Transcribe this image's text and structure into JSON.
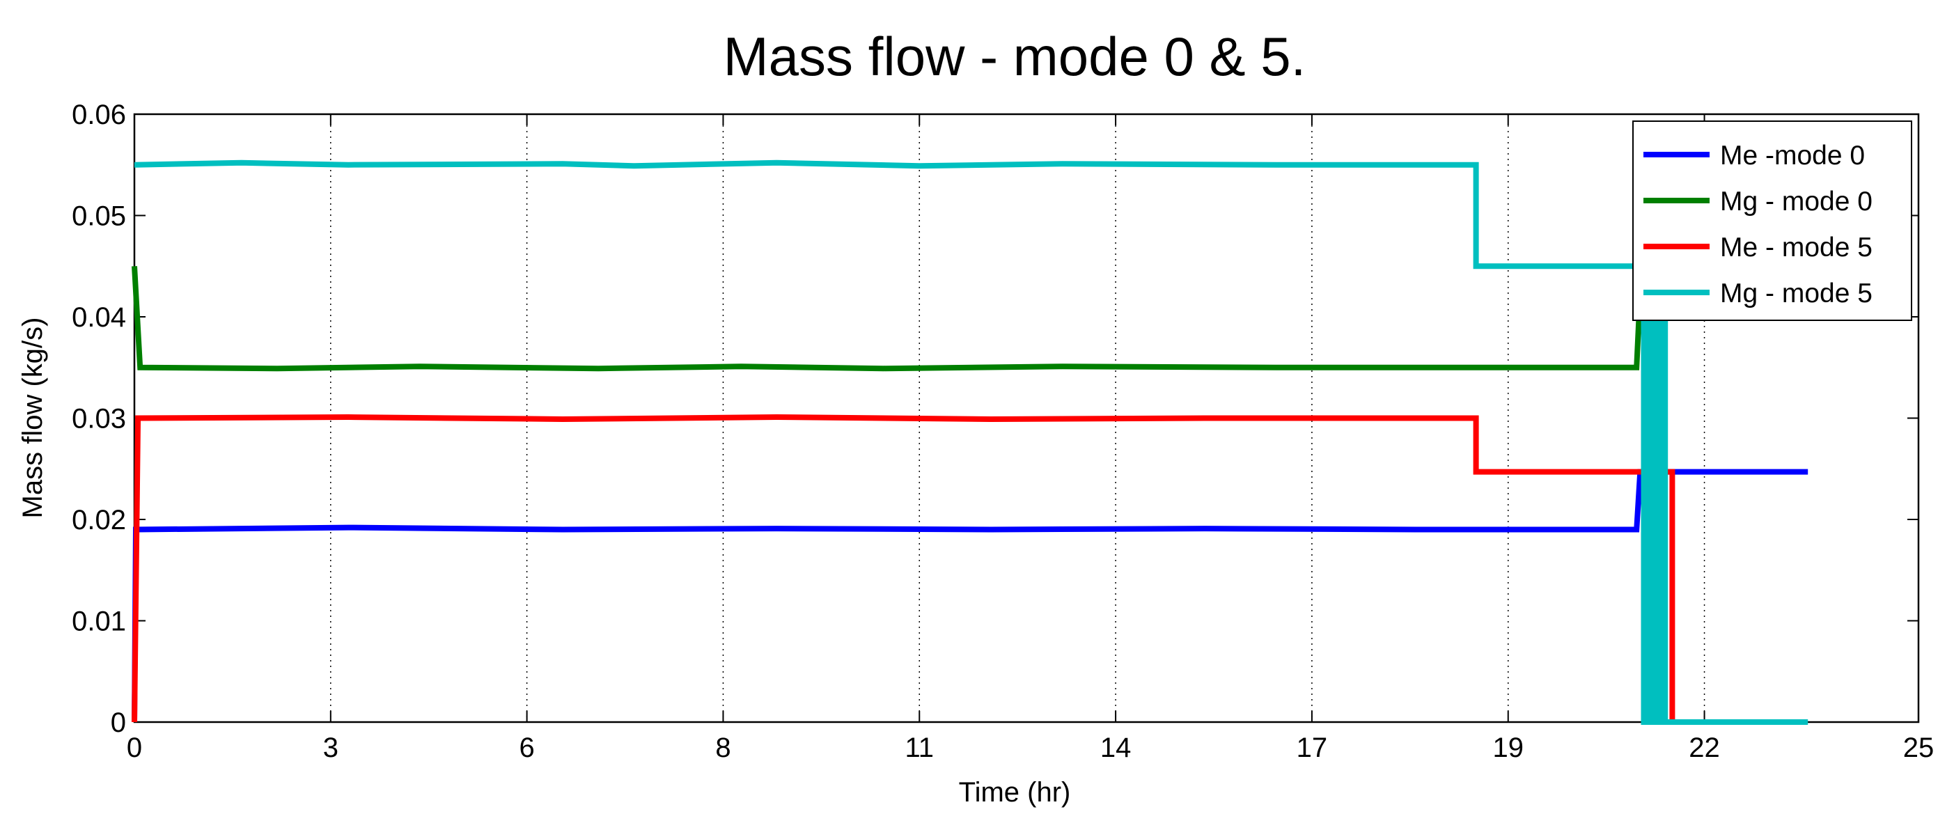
{
  "chart_data": {
    "type": "line",
    "title": "Mass flow - mode 0  & 5.",
    "xlabel": "Time (hr)",
    "ylabel": "Mass flow (kg/s)",
    "xlim": [
      0,
      25
    ],
    "ylim": [
      0,
      0.06
    ],
    "x_ticks": [
      0,
      2.75,
      5.5,
      8.25,
      11,
      13.75,
      16.5,
      19.25,
      22,
      25
    ],
    "x_tick_labels": [
      "0",
      "3",
      "6",
      "8",
      "11",
      "14",
      "17",
      "19",
      "22",
      "25"
    ],
    "y_ticks": [
      0,
      0.01,
      0.02,
      0.03,
      0.04,
      0.05,
      0.06
    ],
    "y_tick_labels": [
      "0",
      "0.01",
      "0.02",
      "0.03",
      "0.04",
      "0.05",
      "0.06"
    ],
    "grid": "vertical dotted",
    "legend_position": "top-right",
    "series": [
      {
        "name": "Me -mode 0",
        "color": "#0000ff",
        "points": [
          [
            0,
            0
          ],
          [
            0.02,
            0.019
          ],
          [
            3,
            0.0192
          ],
          [
            6,
            0.019
          ],
          [
            9,
            0.0191
          ],
          [
            12,
            0.019
          ],
          [
            15,
            0.0191
          ],
          [
            18,
            0.019
          ],
          [
            21.05,
            0.019
          ],
          [
            21.1,
            0.0247
          ],
          [
            23.45,
            0.0247
          ]
        ]
      },
      {
        "name": "Mg - mode 0",
        "color": "#007f00",
        "points": [
          [
            0,
            0.045
          ],
          [
            0.08,
            0.035
          ],
          [
            2,
            0.0349
          ],
          [
            4,
            0.0351
          ],
          [
            6.5,
            0.0349
          ],
          [
            8.5,
            0.0351
          ],
          [
            10.5,
            0.0349
          ],
          [
            13,
            0.0351
          ],
          [
            16,
            0.035
          ],
          [
            21.05,
            0.035
          ],
          [
            21.1,
            0.0425
          ]
        ]
      },
      {
        "name": "Me - mode 5",
        "color": "#ff0000",
        "points": [
          [
            0,
            0
          ],
          [
            0.05,
            0.03
          ],
          [
            3,
            0.0301
          ],
          [
            6,
            0.0299
          ],
          [
            9,
            0.0301
          ],
          [
            12,
            0.0299
          ],
          [
            15,
            0.03
          ],
          [
            18.8,
            0.03
          ],
          [
            18.8,
            0.0247
          ],
          [
            21.55,
            0.0247
          ],
          [
            21.55,
            0
          ]
        ]
      },
      {
        "name": "Mg - mode 5",
        "color": "#00bfbf",
        "points": [
          [
            0,
            0.055
          ],
          [
            1.5,
            0.0552
          ],
          [
            3,
            0.055
          ],
          [
            6,
            0.0551
          ],
          [
            7,
            0.0549
          ],
          [
            9,
            0.0552
          ],
          [
            11,
            0.0549
          ],
          [
            13,
            0.0551
          ],
          [
            16,
            0.055
          ],
          [
            18.8,
            0.055
          ],
          [
            18.8,
            0.045
          ],
          [
            21.15,
            0.045
          ],
          [
            21.15,
            0
          ],
          [
            21.45,
            0
          ],
          [
            21.45,
            0.045
          ],
          [
            21.45,
            0
          ],
          [
            23.45,
            0
          ]
        ]
      }
    ]
  }
}
